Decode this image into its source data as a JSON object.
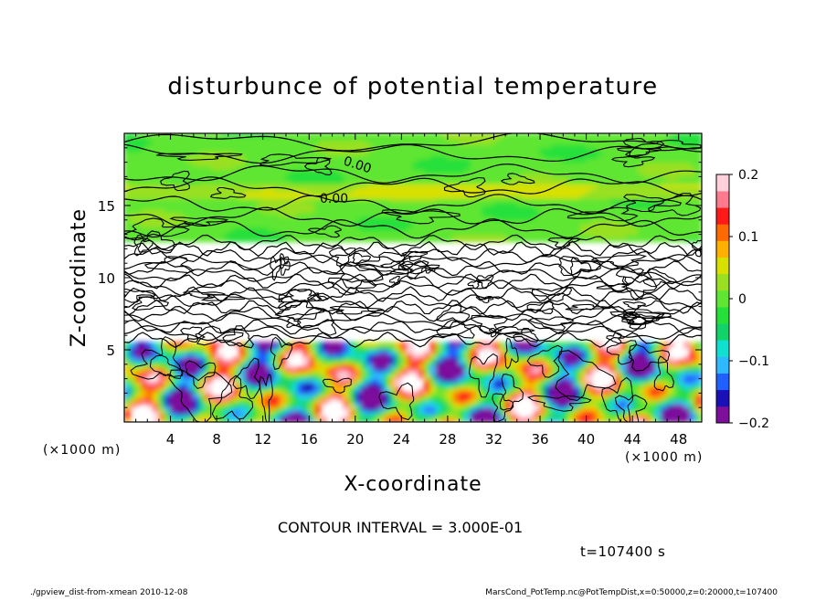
{
  "chart_data": {
    "type": "heatmap",
    "title": "disturbunce of potential temperature",
    "xlabel": "X-coordinate",
    "ylabel": "Z-coordinate",
    "x_unit": "(×1000 m)",
    "y_unit": "(×1000 m)",
    "xlim": [
      0,
      50
    ],
    "ylim": [
      0,
      20
    ],
    "x_ticks": [
      4,
      8,
      12,
      16,
      20,
      24,
      28,
      32,
      36,
      40,
      44,
      48
    ],
    "y_ticks": [
      5,
      10,
      15
    ],
    "colorbar": {
      "min": -0.2,
      "max": 0.2,
      "ticks": [
        0.2,
        0.1,
        0,
        -0.1,
        -0.2
      ],
      "tick_labels": [
        "0.2",
        "0.1",
        "0",
        "−0.1",
        "−0.2"
      ],
      "colors": [
        "#7d0f9c",
        "#1a10b8",
        "#2060ff",
        "#30b8ff",
        "#10e0d0",
        "#12d36a",
        "#26e03a",
        "#5fe633",
        "#9ae020",
        "#d8e000",
        "#ffb000",
        "#ff6a00",
        "#ff1a1a",
        "#ff7a8c",
        "#ffd0dc"
      ]
    },
    "contour_interval": "CONTOUR INTERVAL = 3.000E-01",
    "contour_labels": [
      "0.00",
      "0.00"
    ],
    "time_label": "t=107400 s",
    "footer_left": "./gpview_dist-from-xmean  2010-12-08",
    "footer_right": "MarsCond_PotTemp.nc@PotTempDist,x=0:50000,z=0:20000,t=107400",
    "regions": [
      {
        "name": "upper layer",
        "z_range": [
          12.5,
          20
        ],
        "value": 0.0,
        "description": "near-zero disturbance"
      },
      {
        "name": "mid layer",
        "z_range": [
          5.5,
          12.5
        ],
        "value": 0.2,
        "description": "saturated positive with dense contours"
      },
      {
        "name": "lower layer",
        "z_range": [
          0,
          5.5
        ],
        "value_range": [
          -0.2,
          0.2
        ],
        "description": "turbulent mixed eddies"
      }
    ]
  }
}
